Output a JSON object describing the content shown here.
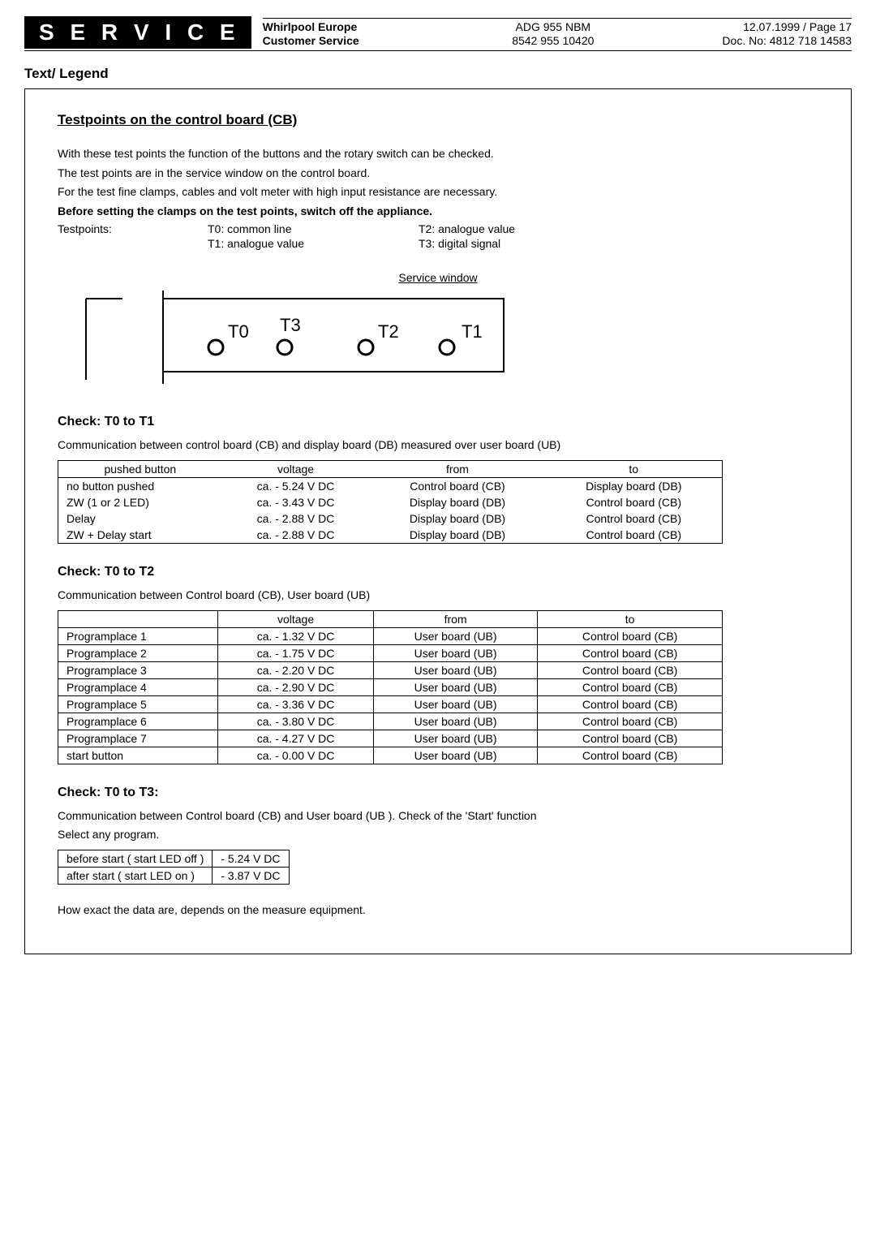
{
  "header": {
    "service_badge": "S E R V I C E",
    "company1": "Whirlpool Europe",
    "company2": "Customer Service",
    "model1": "ADG 955 NBM",
    "model2": "8542 955 10420",
    "date_page": "12.07.1999 / Page 17",
    "docno": "Doc. No: 4812 718 14583"
  },
  "title": "Text/ Legend",
  "tp": {
    "heading": "Testpoints on the control board (CB)",
    "p1": "With these test points the function of the buttons and the rotary switch can be checked.",
    "p2": "The test points are in the service window on the control board.",
    "p3": "For the test fine clamps, cables and volt meter with high input resistance are necessary.",
    "p4": "Before setting the clamps on the test points, switch off the appliance.",
    "label": "Testpoints:",
    "t0": "T0: common line",
    "t1": "T1: analogue value",
    "t2": "T2: analogue value",
    "t3": "T3: digital signal",
    "svc_window": "Service window"
  },
  "diagram": {
    "labels": [
      "T0",
      "T3",
      "T2",
      "T1"
    ]
  },
  "check1": {
    "title": "Check: T0 to T1",
    "desc": "Communication between control board (CB) and display board (DB) measured over user board (UB)",
    "headers": [
      "pushed button",
      "voltage",
      "from",
      "to"
    ],
    "rows": [
      [
        "no button pushed",
        "ca. - 5.24 V DC",
        "Control board (CB)",
        "Display board (DB)"
      ],
      [
        "ZW (1 or 2 LED)",
        "ca. - 3.43 V DC",
        "Display board (DB)",
        "Control board (CB)"
      ],
      [
        "Delay",
        "ca. - 2.88 V DC",
        "Display board (DB)",
        "Control board (CB)"
      ],
      [
        "ZW + Delay start",
        "ca. - 2.88 V DC",
        "Display board (DB)",
        "Control board (CB)"
      ]
    ]
  },
  "check2": {
    "title": "Check: T0 to T2",
    "desc": "Communication between Control board (CB), User board (UB)",
    "headers": [
      "",
      "voltage",
      "from",
      "to"
    ],
    "rows": [
      [
        "Programplace 1",
        "ca. - 1.32 V DC",
        "User board (UB)",
        "Control board (CB)"
      ],
      [
        "Programplace 2",
        "ca. - 1.75 V DC",
        "User board (UB)",
        "Control board (CB)"
      ],
      [
        "Programplace 3",
        "ca. - 2.20 V DC",
        "User board (UB)",
        "Control board (CB)"
      ],
      [
        "Programplace 4",
        "ca. - 2.90 V DC",
        "User board (UB)",
        "Control board (CB)"
      ],
      [
        "Programplace 5",
        "ca. - 3.36 V DC",
        "User board (UB)",
        "Control board (CB)"
      ],
      [
        "Programplace 6",
        "ca. - 3.80 V DC",
        "User board (UB)",
        "Control board (CB)"
      ],
      [
        "Programplace 7",
        "ca. - 4.27 V DC",
        "User board (UB)",
        "Control board (CB)"
      ],
      [
        "start button",
        "ca. - 0.00 V DC",
        "User board (UB)",
        "Control board (CB)"
      ]
    ]
  },
  "check3": {
    "title": "Check: T0 to T3:",
    "desc1": "Communication between Control board (CB) and User board (UB ). Check of the 'Start' function",
    "desc2": "Select any program.",
    "rows": [
      [
        "before start  ( start LED off )",
        "- 5.24 V DC"
      ],
      [
        "after start    ( start LED on )",
        "- 3.87 V DC"
      ]
    ]
  },
  "closing": "How exact the data are, depends on the measure equipment."
}
